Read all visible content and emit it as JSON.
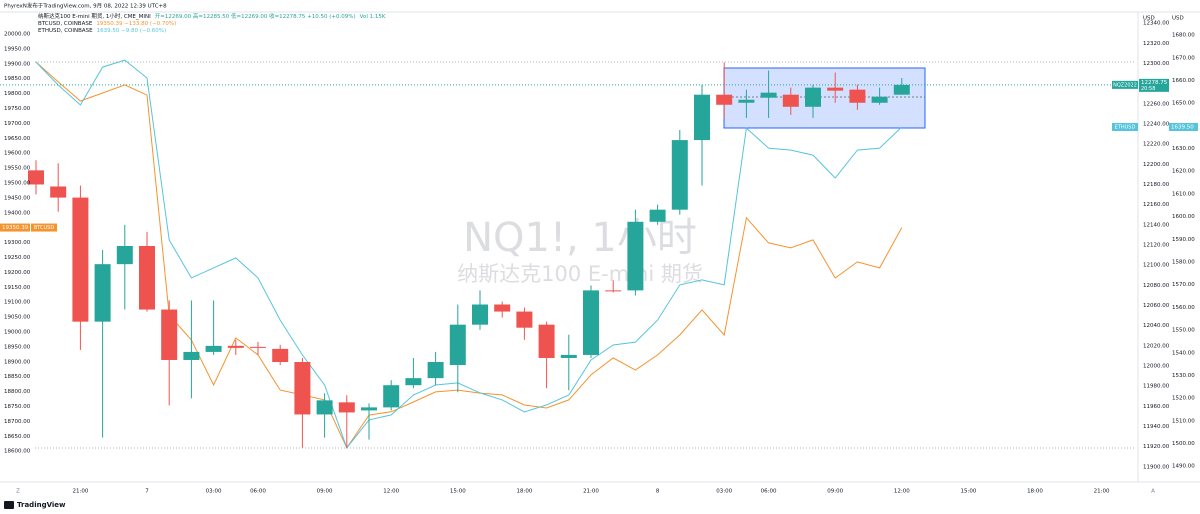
{
  "ui": {
    "header": "PhyrexN发布于TradingView.com, 9月 08, 2022 12:39 UTC+8",
    "legend": {
      "nq_name": "纳斯达克100 E-mini 期货, 1小时, CME_MINI",
      "nq_values": "开=12269.00 高=12285.50 低=12269.00 收=12278.75 +10.50 (+0.09%)",
      "nq_volume": "Vol 1.15K",
      "btc_name": "BTCUSD, COINBASE",
      "btc_values": "19350.39 −133.80 (−0.70%)",
      "eth_name": "ETHUSD, COINBASE",
      "eth_values": "1639.50 −9.80 (−0.60%)"
    },
    "watermark_title": "NQ1!, 1小时",
    "watermark_subtitle": "纳斯达克100 E-mini 期货",
    "last_price_symbol": "NQZ2022",
    "countdown": "20:58",
    "zoom_button": "Z",
    "auto_button": "A",
    "brand": "TradingView"
  },
  "chart_data": {
    "type": "candlestick",
    "ylabel": "USD",
    "y2label": "USD",
    "categories": [
      null,
      null,
      "21:00",
      null,
      null,
      "7",
      null,
      null,
      "03:00",
      null,
      "06:00",
      null,
      null,
      "09:00",
      null,
      null,
      "12:00",
      null,
      null,
      "15:00",
      null,
      null,
      "18:00",
      null,
      null,
      "21:00",
      null,
      null,
      "8",
      null,
      null,
      "03:00",
      null,
      "06:00",
      null,
      null,
      "09:00",
      null,
      null,
      "12:00",
      null,
      null,
      "15:00",
      null,
      null,
      "18:00",
      null,
      null,
      "21:00"
    ],
    "ohlc": {
      "up_color": "#26a69a",
      "down_color": "#ef5350",
      "open": [
        12194,
        12178,
        12167,
        12044,
        12101,
        12119,
        12056,
        12006,
        12014,
        12020,
        12019,
        12017,
        12004,
        11952,
        11964,
        11956,
        11959,
        11981,
        11988,
        12001,
        12041,
        12061,
        12054,
        12041,
        12008,
        12011,
        12075,
        12075,
        12143,
        12155,
        12224,
        12269,
        12261,
        12266,
        12269,
        12257,
        12276,
        12274,
        12261,
        12269,
        null,
        null,
        null,
        null,
        null,
        null,
        null,
        null,
        null
      ],
      "high": [
        12204,
        12201,
        12179,
        12115,
        12140,
        12133,
        12065,
        12065,
        12065,
        12026,
        12024,
        12021,
        12008,
        11973,
        11971,
        11963,
        11986,
        12008,
        12014,
        12061,
        12075,
        12064,
        12058,
        12044,
        12031,
        12080,
        12085,
        12155,
        12160,
        12234,
        12279,
        12301,
        12274,
        12293,
        12276,
        12279,
        12291,
        12279,
        12276,
        12285.5,
        null,
        null,
        null,
        null,
        null,
        null,
        null,
        null,
        null
      ],
      "low": [
        12170,
        12153,
        12016,
        11929,
        12056,
        12054,
        11961,
        11968,
        12011,
        12011,
        12011,
        12001,
        11919,
        11929,
        11919,
        11927,
        11956,
        11978,
        11981,
        11974,
        12036,
        12048,
        12026,
        11978,
        11976,
        12008,
        12073,
        12070,
        12140,
        12150,
        12179,
        12246,
        12246,
        12246,
        12249,
        12246,
        12261,
        12254,
        12259,
        12269,
        null,
        null,
        null,
        null,
        null,
        null,
        null,
        null,
        null
      ],
      "close": [
        12180,
        12167,
        12044,
        12101,
        12119,
        12056,
        12006,
        12014,
        12020,
        12018,
        12018,
        12004,
        11952,
        11966,
        11954,
        11959,
        11981,
        11988,
        12004,
        12041,
        12061,
        12054,
        12038,
        12008,
        12011,
        12075,
        12074,
        12143,
        12155,
        12224,
        12269,
        12259,
        12264,
        12271,
        12257,
        12276,
        12273,
        12261,
        12267,
        12278.75,
        null,
        null,
        null,
        null,
        null,
        null,
        null,
        null,
        null
      ]
    },
    "series": [
      {
        "name": "BTCUSD",
        "color": "#f5932f",
        "axis": "y_left",
        "values": [
          19906,
          19839,
          19775,
          19802,
          19829,
          19795,
          19057,
          18973,
          18822,
          18980,
          18923,
          18805,
          18789,
          18772,
          18611,
          18721,
          18732,
          18765,
          18799,
          18805,
          18795,
          18789,
          18755,
          18745,
          18772,
          18856,
          18913,
          18872,
          18923,
          18990,
          19074,
          18990,
          19383,
          19299,
          19282,
          19309,
          19181,
          19235,
          19215,
          19350.39,
          null,
          null,
          null,
          null,
          null,
          null,
          null,
          null,
          null
        ]
      },
      {
        "name": "ETHUSD",
        "color": "#56c4dd",
        "axis": "y2",
        "last_value_label": "1639.50",
        "values": [
          1668.1,
          1658.0,
          1649.2,
          1665.9,
          1669.0,
          1661.1,
          1589.7,
          1573.0,
          1577.4,
          1581.8,
          1573.0,
          1554.4,
          1539.0,
          1525.8,
          1498.1,
          1510.4,
          1512.6,
          1521.4,
          1525.8,
          1526.7,
          1522.3,
          1519.2,
          1513.9,
          1517.0,
          1521.4,
          1536.8,
          1543.4,
          1544.7,
          1554.4,
          1569.9,
          1572.1,
          1569.9,
          1639.0,
          1630.2,
          1629.3,
          1627.1,
          1617.0,
          1629.3,
          1630.2,
          1639.5,
          null,
          null,
          null,
          null,
          null,
          null,
          null,
          null,
          null
        ]
      }
    ],
    "ylim": [
      11889,
      12349
    ],
    "yticks": [
      {
        "value": 12340,
        "label": "12340.00"
      },
      {
        "value": 12320,
        "label": "12320.00"
      },
      {
        "value": 12300,
        "label": "12300.00"
      },
      {
        "value": 12280,
        "label": "12280.00"
      },
      {
        "value": 12260,
        "label": "12260.00"
      },
      {
        "value": 12240,
        "label": "12240.00"
      },
      {
        "value": 12220,
        "label": "12220.00"
      },
      {
        "value": 12200,
        "label": "12200.00"
      },
      {
        "value": 12180,
        "label": "12180.00"
      },
      {
        "value": 12160,
        "label": "12160.00"
      },
      {
        "value": 12140,
        "label": "12140.00"
      },
      {
        "value": 12120,
        "label": "12120.00"
      },
      {
        "value": 12100,
        "label": "12100.00"
      },
      {
        "value": 12080,
        "label": "12080.00"
      },
      {
        "value": 12060,
        "label": "12060.00"
      },
      {
        "value": 12040,
        "label": "12040.00"
      },
      {
        "value": 12020,
        "label": "12020.00"
      },
      {
        "value": 12000,
        "label": "12000.00"
      },
      {
        "value": 11980,
        "label": "11980.00"
      },
      {
        "value": 11960,
        "label": "11960.00"
      },
      {
        "value": 11940,
        "label": "11940.00"
      },
      {
        "value": 11920,
        "label": "11920.00"
      },
      {
        "value": 11900,
        "label": "11900.00"
      }
    ],
    "y2lim": [
      1484.8,
      1689.3
    ],
    "y2ticks": [
      {
        "value": 1680,
        "label": "1680.00"
      },
      {
        "value": 1670,
        "label": "1670.00"
      },
      {
        "value": 1660,
        "label": "1660.00"
      },
      {
        "value": 1650,
        "label": "1650.00"
      },
      {
        "value": 1640,
        "label": "1640.00"
      },
      {
        "value": 1630,
        "label": "1630.00"
      },
      {
        "value": 1620,
        "label": "1620.00"
      },
      {
        "value": 1610,
        "label": "1610.00"
      },
      {
        "value": 1600,
        "label": "1600.00"
      },
      {
        "value": 1590,
        "label": "1590.00"
      },
      {
        "value": 1580,
        "label": "1580.00"
      },
      {
        "value": 1570,
        "label": "1570.00"
      },
      {
        "value": 1560,
        "label": "1560.00"
      },
      {
        "value": 1550,
        "label": "1550.00"
      },
      {
        "value": 1540,
        "label": "1540.00"
      },
      {
        "value": 1530,
        "label": "1530.00"
      },
      {
        "value": 1520,
        "label": "1520.00"
      },
      {
        "value": 1510,
        "label": "1510.00"
      },
      {
        "value": 1500,
        "label": "1500.00"
      },
      {
        "value": 1490,
        "label": "1490.00"
      }
    ],
    "y_left_lim": [
      18510,
      20067
    ],
    "y_left_ticks": [
      {
        "value": 20000,
        "label": "20000.00"
      },
      {
        "value": 19950,
        "label": "19950.00"
      },
      {
        "value": 19900,
        "label": "19900.00"
      },
      {
        "value": 19850,
        "label": "19850.00"
      },
      {
        "value": 19800,
        "label": "19800.00"
      },
      {
        "value": 19750,
        "label": "19750.00"
      },
      {
        "value": 19700,
        "label": "19700.00"
      },
      {
        "value": 19650,
        "label": "19650.00"
      },
      {
        "value": 19600,
        "label": "19600.00"
      },
      {
        "value": 19550,
        "label": "19550.00"
      },
      {
        "value": 19500,
        "label": "19500.00"
      },
      {
        "value": 19450,
        "label": "19450.00"
      },
      {
        "value": 19400,
        "label": "19400.00"
      },
      {
        "value": 19350,
        "label": "19350.00"
      },
      {
        "value": 19300,
        "label": "19300.00"
      },
      {
        "value": 19250,
        "label": "19250.00"
      },
      {
        "value": 19200,
        "label": "19200.00"
      },
      {
        "value": 19150,
        "label": "19150.00"
      },
      {
        "value": 19100,
        "label": "19100.00"
      },
      {
        "value": 19050,
        "label": "19050.00"
      },
      {
        "value": 19000,
        "label": "19000.00"
      },
      {
        "value": 18950,
        "label": "18950.00"
      },
      {
        "value": 18900,
        "label": "18900.00"
      },
      {
        "value": 18850,
        "label": "18850.00"
      },
      {
        "value": 18800,
        "label": "18800.00"
      },
      {
        "value": 18750,
        "label": "18750.00"
      },
      {
        "value": 18700,
        "label": "18700.00"
      },
      {
        "value": 18650,
        "label": "18650.00"
      },
      {
        "value": 18600,
        "label": "18600.00"
      }
    ],
    "grid": false
  }
}
